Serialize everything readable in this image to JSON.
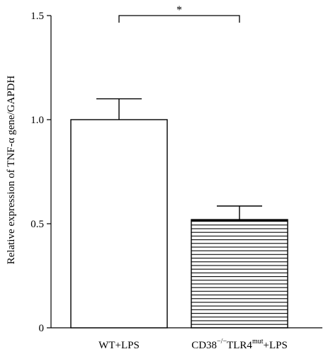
{
  "chart_data": {
    "type": "bar",
    "title": "",
    "xlabel": "",
    "ylabel": "Relative expression of TNF-α gene/GAPDH",
    "ylim": [
      0,
      1.5
    ],
    "yticks": [
      {
        "value": 0,
        "label": "0"
      },
      {
        "value": 0.5,
        "label": "0.5"
      },
      {
        "value": 1.0,
        "label": "1.0"
      },
      {
        "value": 1.5,
        "label": "1.5"
      }
    ],
    "categories": [
      {
        "base": "WT+LPS",
        "sup1": "",
        "mid": "",
        "sup2": "",
        "tail": ""
      },
      {
        "base": "CD38",
        "sup1": "−/−",
        "mid": "TLR4",
        "sup2": "mut",
        "tail": "+LPS"
      }
    ],
    "values": [
      1.0,
      0.52
    ],
    "errors": [
      0.1,
      0.065
    ],
    "fills": [
      "none",
      "horizontal-lines"
    ],
    "significance": {
      "between": [
        0,
        1
      ],
      "label": "*"
    },
    "grid": false,
    "legend": "none"
  }
}
